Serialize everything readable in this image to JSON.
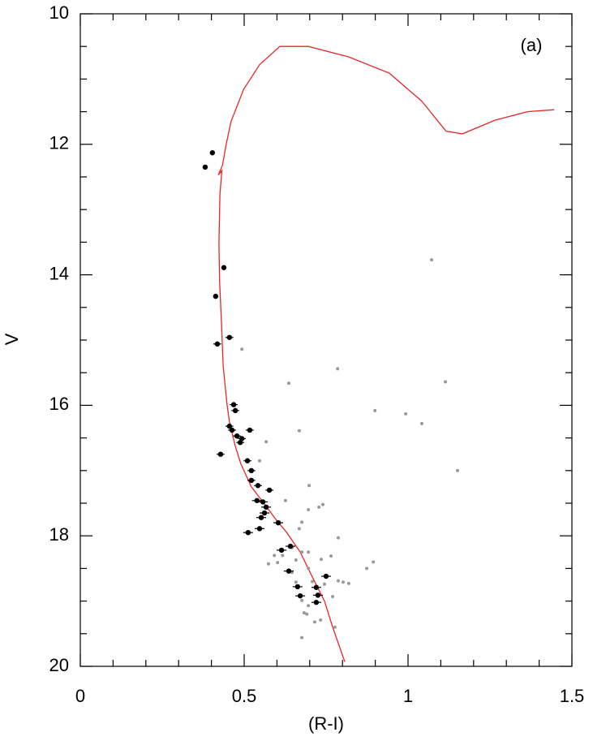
{
  "chart_data": {
    "type": "scatter",
    "annotation": "(a)",
    "xlabel": "(R-I)",
    "ylabel": "V",
    "xlim": [
      0,
      1.5
    ],
    "ylim": [
      20,
      10
    ],
    "xticks": [
      0,
      0.5,
      1,
      1.5
    ],
    "yticks": [
      10,
      12,
      14,
      16,
      18,
      20
    ],
    "xminorticks": [
      0.1,
      0.2,
      0.3,
      0.4,
      0.6,
      0.7,
      0.8,
      0.9,
      1.1,
      1.2,
      1.3,
      1.4
    ],
    "yminorticks": [
      10.5,
      11,
      11.5,
      12.5,
      13,
      13.5,
      14.5,
      15,
      15.5,
      16.5,
      17,
      17.5,
      18.5,
      19,
      19.5
    ],
    "isochrone": {
      "color": "#e8262a",
      "x": [
        0.807,
        0.77,
        0.745,
        0.7,
        0.671,
        0.63,
        0.597,
        0.56,
        0.522,
        0.49,
        0.473,
        0.455,
        0.448,
        0.436,
        0.431,
        0.425,
        0.423,
        0.426,
        0.432,
        0.421,
        0.434,
        0.445,
        0.46,
        0.498,
        0.547,
        0.609,
        0.696,
        0.819,
        0.943,
        1.042,
        1.116,
        1.166,
        1.265,
        1.364,
        1.446
      ],
      "values": [
        19.93,
        19.4,
        19.0,
        18.55,
        18.25,
        17.95,
        17.75,
        17.5,
        17.25,
        16.9,
        16.63,
        16.25,
        16.0,
        15.4,
        14.76,
        14.1,
        13.52,
        12.77,
        12.4,
        12.47,
        12.32,
        12.0,
        11.65,
        11.16,
        10.78,
        10.5,
        10.5,
        10.66,
        10.91,
        11.34,
        11.8,
        11.84,
        11.63,
        11.5,
        11.47
      ]
    },
    "members": {
      "color": "#000000",
      "x": [
        0.403,
        0.381,
        0.438,
        0.413,
        0.418,
        0.455,
        0.468,
        0.473,
        0.455,
        0.463,
        0.478,
        0.493,
        0.488,
        0.517,
        0.428,
        0.51,
        0.522,
        0.522,
        0.542,
        0.577,
        0.539,
        0.557,
        0.567,
        0.562,
        0.552,
        0.604,
        0.547,
        0.512,
        0.614,
        0.641,
        0.636,
        0.75,
        0.663,
        0.72,
        0.671,
        0.725,
        0.72
      ],
      "values": [
        12.13,
        12.35,
        13.89,
        14.33,
        15.06,
        14.96,
        15.99,
        16.08,
        16.32,
        16.38,
        16.47,
        16.51,
        16.57,
        16.38,
        16.75,
        16.85,
        17.0,
        17.15,
        17.23,
        17.3,
        17.46,
        17.48,
        17.56,
        17.65,
        17.72,
        17.8,
        17.89,
        17.95,
        18.22,
        18.16,
        18.54,
        18.62,
        18.78,
        18.79,
        18.92,
        18.91,
        19.02
      ],
      "xerr": [
        null,
        null,
        null,
        null,
        0.012,
        0.012,
        0.012,
        0.012,
        0.012,
        0.012,
        0.012,
        0.012,
        0.012,
        0.012,
        0.012,
        0.012,
        0.012,
        0.012,
        0.012,
        0.012,
        0.015,
        0.015,
        0.015,
        0.015,
        0.015,
        0.015,
        0.015,
        0.015,
        0.015,
        0.015,
        0.015,
        0.015,
        0.015,
        0.015,
        0.015,
        0.015,
        0.015
      ]
    },
    "field": {
      "color": "#999999",
      "x": [
        1.072,
        0.785,
        0.636,
        1.114,
        0.899,
        0.993,
        1.042,
        0.668,
        0.567,
        1.151,
        0.547,
        0.698,
        0.626,
        0.728,
        0.74,
        0.696,
        0.676,
        0.668,
        0.787,
        0.646,
        0.676,
        0.696,
        0.765,
        0.592,
        0.617,
        0.658,
        0.735,
        0.602,
        0.574,
        0.894,
        0.874,
        0.696,
        0.646,
        0.787,
        0.802,
        0.819,
        0.658,
        0.708,
        0.745,
        0.77,
        0.676,
        0.696,
        0.683,
        0.691,
        0.715,
        0.733,
        0.777,
        0.676,
        0.493
      ],
      "values": [
        13.77,
        15.44,
        15.66,
        15.64,
        16.08,
        16.13,
        16.28,
        16.39,
        16.56,
        17.0,
        16.85,
        17.23,
        17.46,
        17.56,
        17.52,
        17.6,
        17.79,
        17.89,
        18.03,
        18.18,
        18.25,
        18.25,
        18.31,
        18.3,
        18.3,
        18.37,
        18.36,
        18.41,
        18.43,
        18.4,
        18.5,
        18.5,
        18.56,
        18.69,
        18.71,
        18.73,
        18.71,
        18.7,
        18.74,
        18.93,
        18.99,
        19.07,
        19.18,
        19.2,
        19.32,
        19.29,
        19.4,
        19.56,
        15.14
      ]
    }
  }
}
